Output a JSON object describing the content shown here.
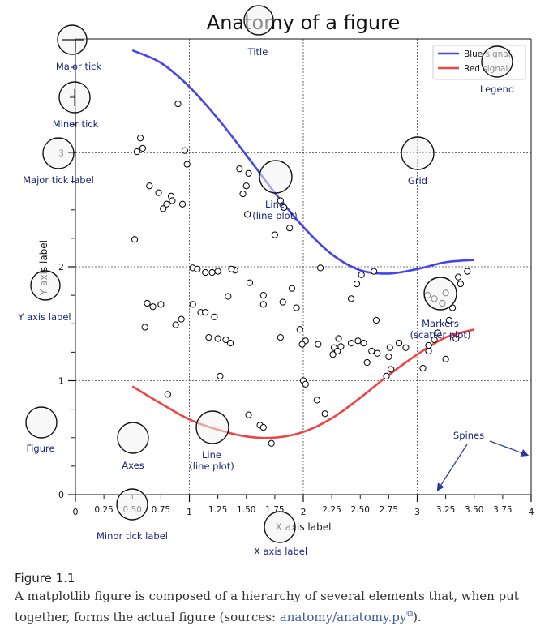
{
  "chart_data": {
    "type": "line",
    "title": "Anatomy of a figure",
    "xlabel": "X axis label",
    "ylabel": "Y axis label",
    "xlim": [
      0,
      4
    ],
    "ylim": [
      0,
      4
    ],
    "x_major_ticks": [
      "0",
      "1",
      "2",
      "3",
      "4"
    ],
    "x_minor_ticks": [
      "0.25",
      "0.50",
      "0.75",
      "1.25",
      "1.50",
      "1.75",
      "2.25",
      "2.50",
      "2.75",
      "3.25",
      "3.50",
      "3.75"
    ],
    "y_major_ticks": [
      "0",
      "1",
      "2",
      "3"
    ],
    "grid": true,
    "legend_position": "top-right",
    "series": [
      {
        "name": "Blue signal",
        "kind": "line",
        "color": "#4444ee",
        "x": [
          0.5,
          0.75,
          1.0,
          1.25,
          1.5,
          1.75,
          2.0,
          2.25,
          2.5,
          2.75,
          3.0,
          3.25,
          3.5
        ],
        "y": [
          3.9,
          3.79,
          3.58,
          3.3,
          2.98,
          2.65,
          2.35,
          2.11,
          1.97,
          1.94,
          1.98,
          2.04,
          2.06
        ]
      },
      {
        "name": "Red signal",
        "kind": "line",
        "color": "#ee4444",
        "x": [
          0.5,
          0.75,
          1.0,
          1.25,
          1.5,
          1.75,
          2.0,
          2.25,
          2.5,
          2.75,
          3.0,
          3.25,
          3.5
        ],
        "y": [
          0.95,
          0.8,
          0.66,
          0.57,
          0.51,
          0.5,
          0.55,
          0.67,
          0.85,
          1.05,
          1.23,
          1.38,
          1.45
        ]
      },
      {
        "name": "scatter",
        "kind": "scatter",
        "x": [
          0.9,
          0.57,
          0.59,
          0.54,
          0.96,
          0.98,
          0.65,
          0.84,
          0.73,
          0.8,
          0.85,
          0.77,
          0.94,
          1.44,
          1.52,
          1.5,
          1.47,
          1.51,
          1.75,
          1.88,
          1.8,
          2.15,
          2.62,
          2.51,
          2.47,
          3.44,
          3.36,
          3.38,
          3.25,
          3.15,
          3.09,
          3.22,
          3.31,
          3.1,
          2.75,
          2.76,
          2.48,
          2.53,
          2.31,
          2.27,
          2.13,
          2.02,
          1.99,
          1.97,
          1.94,
          1.9,
          1.82,
          1.65,
          1.53,
          1.4,
          1.37,
          1.25,
          1.2,
          1.14,
          1.03,
          1.07,
          1.03,
          1.1,
          0.88,
          0.68,
          0.75,
          0.93,
          0.61,
          0.63,
          1.14,
          1.22,
          1.17,
          1.25,
          1.8,
          1.65,
          1.34,
          1.36,
          1.32,
          1.62,
          1.65,
          1.52,
          1.72,
          2.0,
          2.02,
          2.12,
          2.19,
          2.26,
          2.3,
          2.33,
          2.42,
          2.56,
          2.6,
          2.65,
          2.73,
          2.77,
          2.84,
          2.9,
          3.1,
          3.15,
          3.18,
          3.28,
          3.05,
          3.25,
          3.34,
          1.27,
          0.81,
          0.52,
          1.83,
          2.42,
          2.64
        ],
        "y": [
          3.43,
          3.13,
          3.04,
          3.01,
          3.02,
          2.9,
          2.71,
          2.62,
          2.65,
          2.55,
          2.58,
          2.51,
          2.55,
          2.86,
          2.82,
          2.71,
          2.64,
          2.46,
          2.28,
          2.34,
          2.58,
          1.99,
          1.96,
          1.93,
          1.85,
          1.96,
          1.91,
          1.85,
          1.77,
          1.72,
          1.75,
          1.68,
          1.64,
          1.26,
          1.21,
          1.29,
          1.35,
          1.33,
          1.37,
          1.29,
          1.32,
          1.35,
          1.32,
          1.45,
          1.64,
          1.81,
          1.69,
          1.75,
          1.86,
          1.97,
          1.98,
          1.96,
          1.95,
          1.95,
          1.99,
          1.98,
          1.67,
          1.6,
          1.49,
          1.65,
          1.67,
          1.54,
          1.47,
          1.68,
          1.6,
          1.56,
          1.38,
          1.37,
          1.38,
          1.67,
          1.74,
          1.33,
          1.36,
          0.61,
          0.59,
          0.7,
          0.45,
          1.0,
          0.97,
          0.83,
          0.71,
          1.23,
          1.26,
          1.3,
          1.33,
          1.16,
          1.26,
          1.24,
          1.04,
          1.1,
          1.33,
          1.29,
          1.31,
          1.36,
          1.42,
          1.53,
          1.11,
          1.19,
          1.37,
          1.04,
          0.88,
          2.24,
          2.52,
          1.72,
          1.53
        ]
      }
    ]
  },
  "annotations": {
    "title": "Title",
    "major_tick": "Major tick",
    "minor_tick": "Minor tick",
    "major_tick_label": "Major tick label",
    "grid": "Grid",
    "legend": "Legend",
    "line_plot_1": "Line",
    "line_plot_1_sub": "(line plot)",
    "y_axis_label": "Y axis label",
    "markers": "Markers",
    "markers_sub": "(scatter plot)",
    "figure": "Figure",
    "axes": "Axes",
    "line_plot_2": "Line",
    "line_plot_2_sub": "(line plot)",
    "spines": "Spines",
    "minor_tick_label": "Minor tick label",
    "x_axis_label": "X axis label"
  },
  "caption": {
    "title": "Figure 1.1",
    "text_before": "A matplotlib figure is composed of a hierarchy of several elements that, when put together, forms the actual figure (sources: ",
    "link": "anatomy/anatomy.py",
    "text_after": ")."
  },
  "colors": {
    "blue_line": "#4444ee",
    "red_line": "#ee4444",
    "annotation_text": "#1a2580",
    "spine_arrow": "#2a3aa0",
    "link": "#3b5d9c"
  }
}
